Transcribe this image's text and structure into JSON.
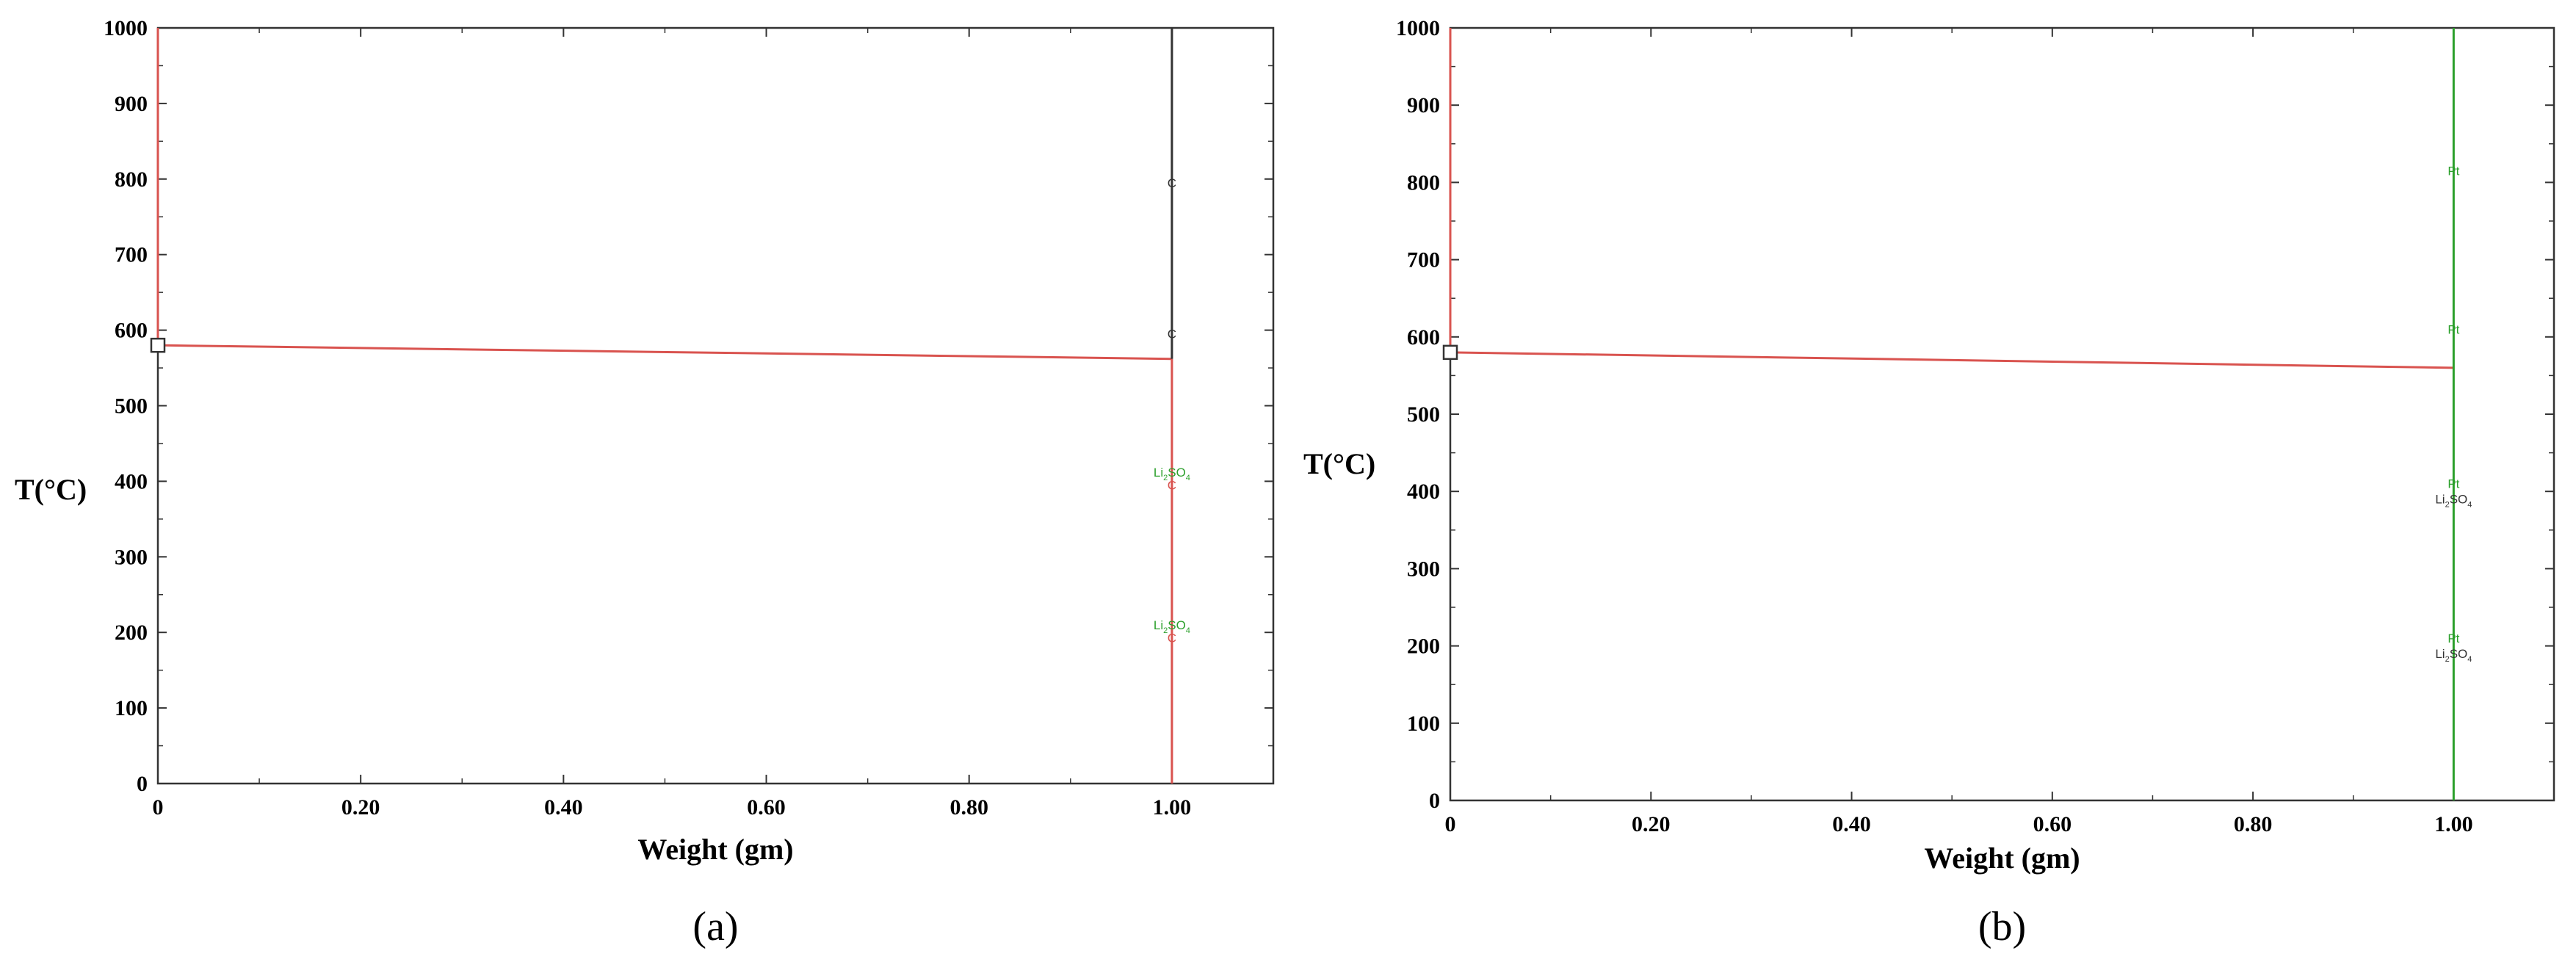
{
  "colors": {
    "liquid_line": "#d9534f",
    "carbon_line": "#333333",
    "pt_line": "#2ca02c",
    "annot_green": "#2ca02c",
    "annot_dark": "#333333",
    "annot_red": "#d9534f",
    "frame": "#333333"
  },
  "chart_data": [
    {
      "type": "line",
      "panel_label": "(a)",
      "xlabel": "Weight (gm)",
      "ylabel": "T(°C)",
      "xlim": [
        0,
        1.1
      ],
      "ylim": [
        0,
        1000
      ],
      "x_ticks": [
        0,
        0.2,
        0.4,
        0.6,
        0.8,
        1.0
      ],
      "x_tick_labels": [
        "0",
        "0.20",
        "0.40",
        "0.60",
        "0.80",
        "1.00"
      ],
      "y_ticks": [
        0,
        100,
        200,
        300,
        400,
        500,
        600,
        700,
        800,
        900,
        1000
      ],
      "y_tick_labels": [
        "0",
        "100",
        "200",
        "300",
        "400",
        "500",
        "600",
        "700",
        "800",
        "900",
        "1000"
      ],
      "series": [
        {
          "color": "#d9534f",
          "points": [
            [
              0,
              1000
            ],
            [
              0,
              580
            ]
          ]
        },
        {
          "color": "#d9534f",
          "points": [
            [
              0,
              580
            ],
            [
              1.0,
              562
            ]
          ]
        },
        {
          "color": "#d9534f",
          "points": [
            [
              1.0,
              562
            ],
            [
              1.0,
              0
            ]
          ]
        },
        {
          "color": "#333333",
          "points": [
            [
              1.0,
              1000
            ],
            [
              1.0,
              562
            ]
          ]
        }
      ],
      "markers": [
        {
          "x": 0,
          "y": 580,
          "shape": "square",
          "color": "#333333"
        }
      ],
      "annotations": [
        {
          "x": 1.0,
          "y": 795,
          "text": "C",
          "sub": "",
          "tail": "",
          "color": "#333333"
        },
        {
          "x": 1.0,
          "y": 595,
          "text": "C",
          "sub": "",
          "tail": "",
          "color": "#333333"
        },
        {
          "x": 1.0,
          "y": 412,
          "text": "Li",
          "sub": "2",
          "tail": "SO",
          "sub2": "4",
          "color": "#2ca02c"
        },
        {
          "x": 1.0,
          "y": 395,
          "text": "C",
          "sub": "",
          "tail": "",
          "color": "#d9534f"
        },
        {
          "x": 1.0,
          "y": 210,
          "text": "Li",
          "sub": "2",
          "tail": "SO",
          "sub2": "4",
          "color": "#2ca02c"
        },
        {
          "x": 1.0,
          "y": 193,
          "text": "C",
          "sub": "",
          "tail": "",
          "color": "#d9534f"
        }
      ]
    },
    {
      "type": "line",
      "panel_label": "(b)",
      "xlabel": "Weight (gm)",
      "ylabel": "T(°C)",
      "xlim": [
        0,
        1.1
      ],
      "ylim": [
        0,
        1000
      ],
      "x_ticks": [
        0,
        0.2,
        0.4,
        0.6,
        0.8,
        1.0
      ],
      "x_tick_labels": [
        "0",
        "0.20",
        "0.40",
        "0.60",
        "0.80",
        "1.00"
      ],
      "y_ticks": [
        0,
        100,
        200,
        300,
        400,
        500,
        600,
        700,
        800,
        900,
        1000
      ],
      "y_tick_labels": [
        "0",
        "100",
        "200",
        "300",
        "400",
        "500",
        "600",
        "700",
        "800",
        "900",
        "1000"
      ],
      "series": [
        {
          "color": "#d9534f",
          "points": [
            [
              0,
              1000
            ],
            [
              0,
              580
            ]
          ]
        },
        {
          "color": "#d9534f",
          "points": [
            [
              0,
              580
            ],
            [
              1.0,
              560
            ]
          ]
        },
        {
          "color": "#2ca02c",
          "points": [
            [
              1.0,
              1000
            ],
            [
              1.0,
              0
            ]
          ]
        }
      ],
      "markers": [
        {
          "x": 0,
          "y": 580,
          "shape": "square",
          "color": "#333333"
        }
      ],
      "annotations": [
        {
          "x": 1.0,
          "y": 815,
          "text": "Pt",
          "sub": "",
          "tail": "",
          "color": "#2ca02c"
        },
        {
          "x": 1.0,
          "y": 610,
          "text": "Pt",
          "sub": "",
          "tail": "",
          "color": "#2ca02c"
        },
        {
          "x": 1.0,
          "y": 410,
          "text": "Pt",
          "sub": "",
          "tail": "",
          "color": "#2ca02c"
        },
        {
          "x": 1.0,
          "y": 390,
          "text": "Li",
          "sub": "2",
          "tail": "SO",
          "sub2": "4",
          "color": "#333333"
        },
        {
          "x": 1.0,
          "y": 210,
          "text": "Pt",
          "sub": "",
          "tail": "",
          "color": "#2ca02c"
        },
        {
          "x": 1.0,
          "y": 190,
          "text": "Li",
          "sub": "2",
          "tail": "SO",
          "sub2": "4",
          "color": "#333333"
        }
      ]
    }
  ]
}
